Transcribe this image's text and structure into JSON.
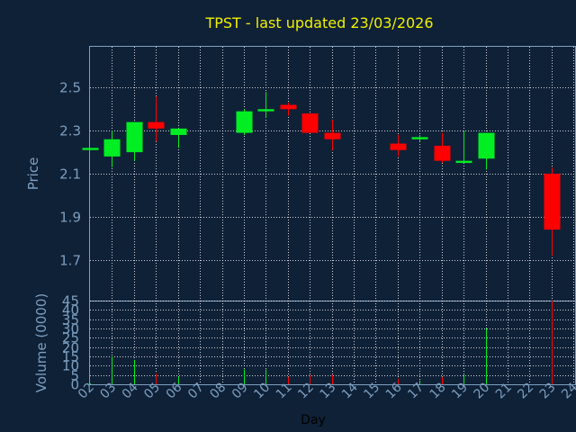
{
  "chart_data": {
    "type": "candlestick",
    "title": "TPST - last updated 23/03/2026",
    "xlabel": "Day",
    "price_panel": {
      "ylabel": "Price",
      "ylim": [
        1.51,
        2.69
      ],
      "yticks": [
        "2.5",
        "2.3",
        "2.1",
        "1.9",
        "1.7"
      ],
      "grid": true
    },
    "volume_panel": {
      "ylabel": "Volume (0000)",
      "ylim": [
        0,
        45
      ],
      "yticks": [
        "0",
        "5",
        "10",
        "15",
        "20",
        "25",
        "30",
        "35",
        "40",
        "45"
      ],
      "grid": true
    },
    "x_tick_labels": [
      "02",
      "03",
      "04",
      "05",
      "06",
      "07",
      "08",
      "09",
      "10",
      "11",
      "12",
      "13",
      "14",
      "15",
      "16",
      "17",
      "18",
      "19",
      "20",
      "21",
      "22",
      "23",
      "24"
    ],
    "colors": {
      "up": "#00ee22",
      "down": "#ff0000",
      "grid": "#ffffff",
      "axis_text": "#7d9fc0",
      "title": "#f0f000",
      "background": "#0f2137"
    },
    "candles": [
      {
        "day": "02",
        "open": 2.21,
        "high": 2.22,
        "low": 2.21,
        "close": 2.22,
        "volume": 0.5
      },
      {
        "day": "03",
        "open": 2.18,
        "high": 2.3,
        "low": 2.13,
        "close": 2.26,
        "volume": 15
      },
      {
        "day": "04",
        "open": 2.2,
        "high": 2.34,
        "low": 2.16,
        "close": 2.34,
        "volume": 13
      },
      {
        "day": "05",
        "open": 2.34,
        "high": 2.46,
        "low": 2.25,
        "close": 2.31,
        "volume": 6
      },
      {
        "day": "06",
        "open": 2.28,
        "high": 2.31,
        "low": 2.22,
        "close": 2.31,
        "volume": 4
      },
      {
        "day": "09",
        "open": 2.29,
        "high": 2.4,
        "low": 2.28,
        "close": 2.39,
        "volume": 8
      },
      {
        "day": "10",
        "open": 2.39,
        "high": 2.48,
        "low": 2.36,
        "close": 2.4,
        "volume": 8
      },
      {
        "day": "11",
        "open": 2.42,
        "high": 2.43,
        "low": 2.37,
        "close": 2.4,
        "volume": 4
      },
      {
        "day": "12",
        "open": 2.38,
        "high": 2.38,
        "low": 2.29,
        "close": 2.29,
        "volume": 5
      },
      {
        "day": "13",
        "open": 2.29,
        "high": 2.35,
        "low": 2.21,
        "close": 2.26,
        "volume": 5
      },
      {
        "day": "16",
        "open": 2.24,
        "high": 2.28,
        "low": 2.18,
        "close": 2.21,
        "volume": 3
      },
      {
        "day": "17",
        "open": 2.26,
        "high": 2.28,
        "low": 2.25,
        "close": 2.27,
        "volume": 2
      },
      {
        "day": "18",
        "open": 2.23,
        "high": 2.29,
        "low": 2.15,
        "close": 2.16,
        "volume": 4
      },
      {
        "day": "19",
        "open": 2.15,
        "high": 2.3,
        "low": 2.15,
        "close": 2.16,
        "volume": 5
      },
      {
        "day": "20",
        "open": 2.17,
        "high": 2.29,
        "low": 2.12,
        "close": 2.29,
        "volume": 30
      },
      {
        "day": "23",
        "open": 2.1,
        "high": 2.13,
        "low": 1.72,
        "close": 1.84,
        "volume": 45
      }
    ]
  }
}
